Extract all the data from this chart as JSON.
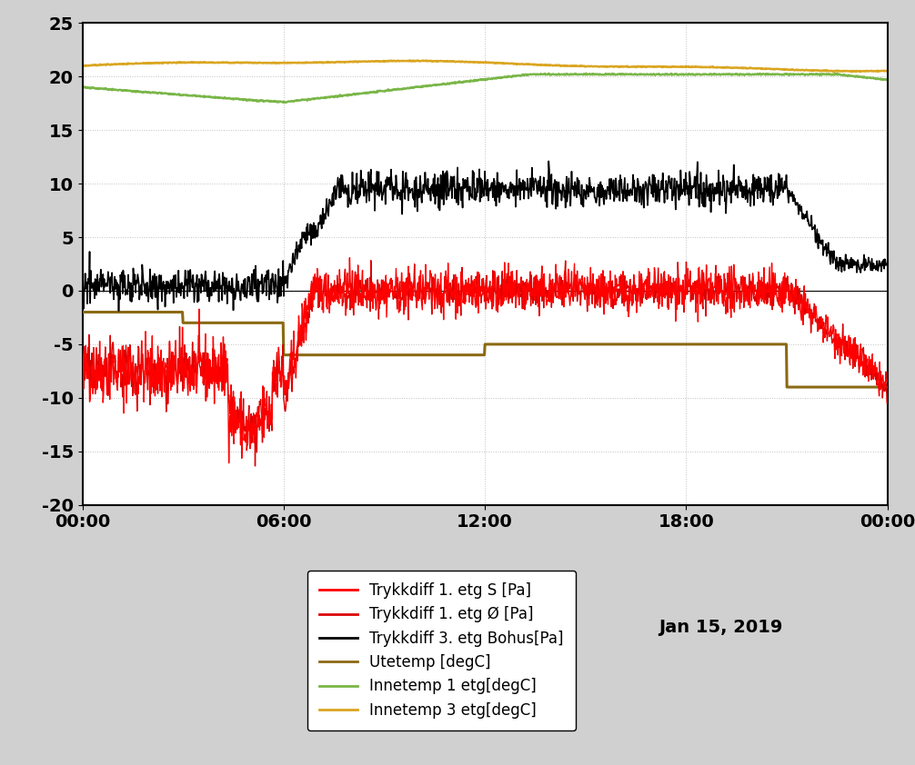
{
  "title": "Jan 15, 2019",
  "ylim": [
    -20,
    25
  ],
  "yticks": [
    -20,
    -15,
    -10,
    -5,
    0,
    5,
    10,
    15,
    20,
    25
  ],
  "xtick_labels": [
    "00:00",
    "06:00",
    "12:00",
    "18:00",
    "00:00"
  ],
  "colors": {
    "trykkdiff_S": "#FF0000",
    "trykkdiff_O": "#DD0000",
    "trykkdiff_bohus": "#000000",
    "utetemp": "#8B6914",
    "innetemp1": "#7AB648",
    "innetemp3": "#DAA520"
  },
  "legend_labels": [
    "Trykkdiff 1. etg S [Pa]",
    "Trykkdiff 1. etg Ø [Pa]",
    "Trykkdiff 3. etg Bohus[Pa]",
    "Utetemp [degC]",
    "Innetemp 1 etg[degC]",
    "Innetemp 3 etg[degC]"
  ],
  "background_color": "#ffffff",
  "outer_background": "#d0d0d0",
  "grid_color": "#c0c0c0"
}
